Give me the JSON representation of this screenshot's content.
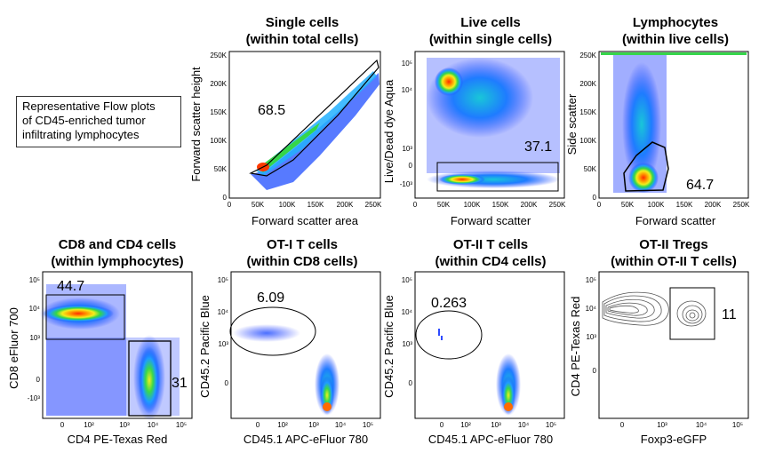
{
  "note": {
    "lines": [
      "Representative Flow plots",
      "of CD45-enriched tumor",
      "infiltrating lymphocytes"
    ]
  },
  "chart_data": [
    {
      "type": "scatter",
      "id": "single",
      "title": [
        "Single cells",
        "(within total cells)"
      ],
      "xlabel": "Forward scatter area",
      "ylabel": "Forward scatter height",
      "x_ticks": [
        "0",
        "50K",
        "100K",
        "150K",
        "200K",
        "250K"
      ],
      "y_ticks": [
        "0",
        "50K",
        "100K",
        "150K",
        "200K",
        "250K"
      ],
      "x_scale": "linear",
      "y_scale": "linear",
      "xlim": [
        0,
        262000
      ],
      "ylim": [
        0,
        262000
      ],
      "gate_percent": "68.5"
    },
    {
      "type": "scatter",
      "id": "live",
      "title": [
        "Live cells",
        "(within single cells)"
      ],
      "xlabel": "Forward scatter",
      "ylabel": "Live/Dead dye Aqua",
      "x_ticks": [
        "0",
        "50K",
        "100K",
        "150K",
        "200K",
        "250K"
      ],
      "y_ticks": [
        "-10³",
        "0",
        "10³",
        "10⁴",
        "10⁵"
      ],
      "x_scale": "linear",
      "y_scale": "biexponential",
      "xlim": [
        0,
        262000
      ],
      "gate_percent": "37.1"
    },
    {
      "type": "scatter",
      "id": "lymph",
      "title": [
        "Lymphocytes",
        "(within live cells)"
      ],
      "xlabel": "Forward scatter",
      "ylabel": "Side scatter",
      "x_ticks": [
        "0",
        "50K",
        "100K",
        "150K",
        "200K",
        "250K"
      ],
      "y_ticks": [
        "0",
        "50K",
        "100K",
        "150K",
        "200K",
        "250K"
      ],
      "x_scale": "linear",
      "y_scale": "linear",
      "xlim": [
        0,
        262000
      ],
      "ylim": [
        0,
        262000
      ],
      "gate_percent": "64.7"
    },
    {
      "type": "scatter",
      "id": "cd8cd4",
      "title": [
        "CD8 and CD4 cells",
        "(within lymphocytes)"
      ],
      "xlabel": "CD4 PE-Texas Red",
      "ylabel": "CD8 eFluor 700",
      "x_ticks": [
        "0",
        "10²",
        "10³",
        "10⁴",
        "10⁵"
      ],
      "y_ticks": [
        "-10³",
        "0",
        "10³",
        "10⁴",
        "10⁵"
      ],
      "x_scale": "biexponential",
      "y_scale": "biexponential",
      "gate_percents": [
        "44.7",
        "31"
      ]
    },
    {
      "type": "scatter",
      "id": "ot1",
      "title": [
        "OT-I T cells",
        "(within CD8 cells)"
      ],
      "xlabel": "CD45.1 APC-eFluor 780",
      "ylabel": "CD45.2 Pacific Blue",
      "x_ticks": [
        "0",
        "10²",
        "10³",
        "10⁴",
        "10⁵"
      ],
      "y_ticks": [
        "0",
        "10³",
        "10⁴",
        "10⁵"
      ],
      "x_scale": "biexponential",
      "y_scale": "biexponential",
      "gate_percent": "6.09"
    },
    {
      "type": "scatter",
      "id": "ot2",
      "title": [
        "OT-II T cells",
        "(within CD4 cells)"
      ],
      "xlabel": "CD45.1 APC-eFluor 780",
      "ylabel": "CD45.2 Pacific Blue",
      "x_ticks": [
        "0",
        "10²",
        "10³",
        "10⁴",
        "10⁵"
      ],
      "y_ticks": [
        "0",
        "10³",
        "10⁴",
        "10⁵"
      ],
      "x_scale": "biexponential",
      "y_scale": "biexponential",
      "gate_percent": "0.263"
    },
    {
      "type": "contour",
      "id": "treg",
      "title": [
        "OT-II Tregs",
        "(within OT-II T cells)"
      ],
      "xlabel": "Foxp3-eGFP",
      "ylabel": "CD4 PE-Texas Red",
      "x_ticks": [
        "0",
        "10³",
        "10⁴",
        "10⁵"
      ],
      "y_ticks": [
        "0",
        "10³",
        "10⁴",
        "10⁵"
      ],
      "x_scale": "biexponential",
      "y_scale": "biexponential",
      "gate_percent": "11"
    }
  ]
}
